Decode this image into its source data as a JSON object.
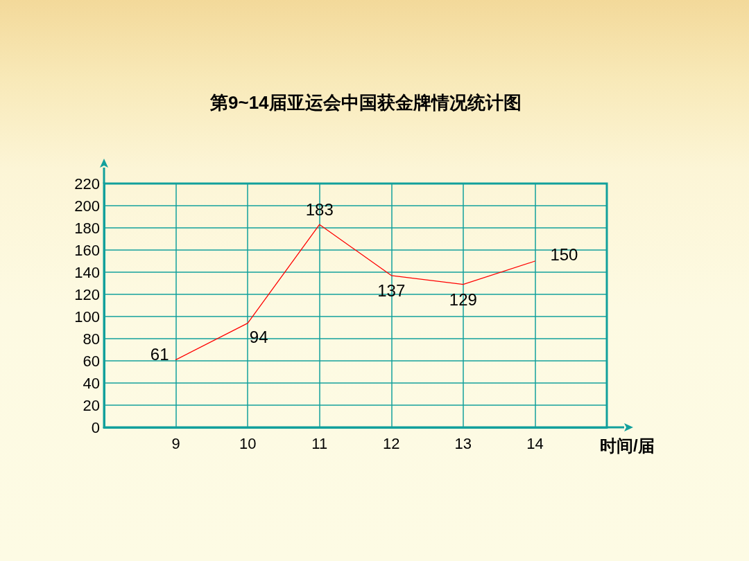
{
  "chart_data": {
    "type": "line",
    "title": "第9~14届亚运会中国获金牌情况统计图",
    "xlabel": "时间/届",
    "x": [
      9,
      10,
      11,
      12,
      13,
      14
    ],
    "xlim": [
      8,
      15
    ],
    "xticks": [
      9,
      10,
      11,
      12,
      13,
      14
    ],
    "ylim": [
      0,
      220
    ],
    "yticks": [
      0,
      20,
      40,
      60,
      80,
      100,
      120,
      140,
      160,
      180,
      200,
      220
    ],
    "series": [
      {
        "color": "#ff0000",
        "values": [
          61,
          94,
          183,
          137,
          129,
          150
        ]
      }
    ],
    "data_labels": true,
    "grid": true,
    "marker": "none",
    "line_style": "solid"
  }
}
